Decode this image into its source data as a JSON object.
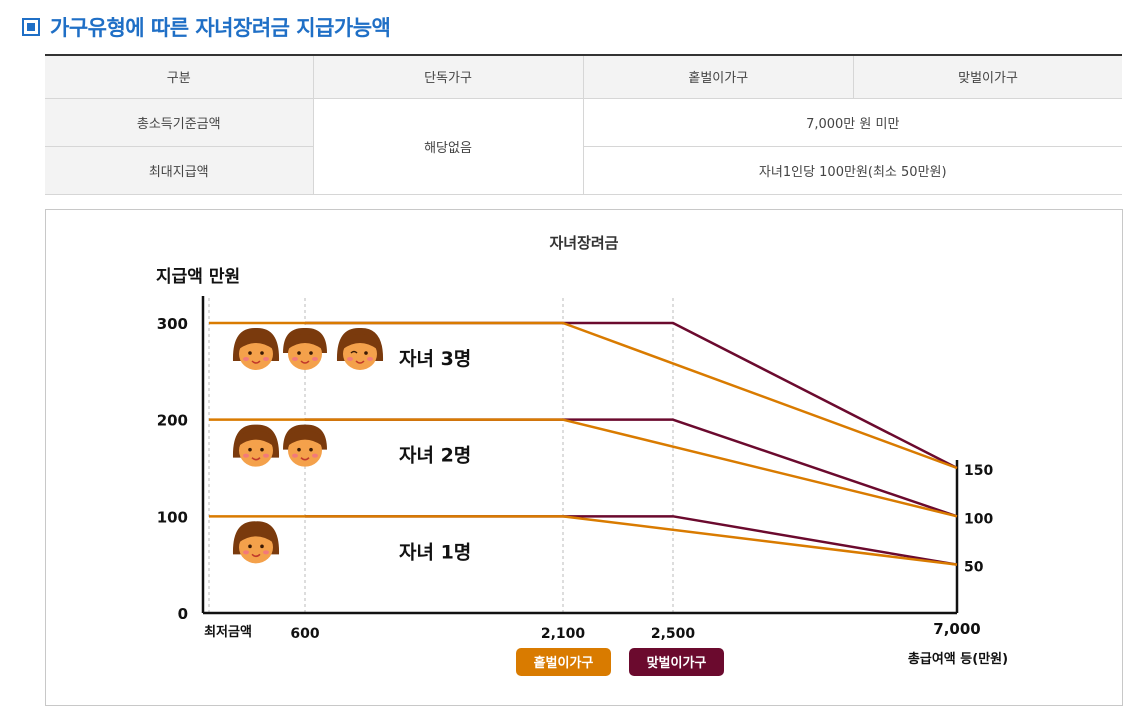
{
  "section": {
    "title": "가구유형에 따른 자녀장려금 지급가능액"
  },
  "table": {
    "headers": [
      "구분",
      "단독가구",
      "홑벌이가구",
      "맞벌이가구"
    ],
    "rows": [
      {
        "label": "총소득기준금액",
        "single": "해당없음",
        "combined": "7,000만 원 미만"
      },
      {
        "label": "최대지급액",
        "combined": "자녀1인당 100만원(최소 50만원)"
      }
    ]
  },
  "chart_data": {
    "type": "line",
    "title": "자녀장려금",
    "ylabel": "지급액 만원",
    "xlabel": "총급여액 등(만원)",
    "x_ticks": [
      "최저금액",
      "600",
      "2,100",
      "2,500",
      "7,000"
    ],
    "y_ticks": [
      "0",
      "100",
      "200",
      "300"
    ],
    "right_labels": [
      "150",
      "100",
      "50"
    ],
    "colors": {
      "single_earner": "#d97b00",
      "dual_earner": "#6b0a2e"
    },
    "legend": [
      "홑벌이가구",
      "맞벌이가구"
    ],
    "groups": [
      {
        "label": "자녀 3명",
        "children": 3,
        "series": [
          {
            "name": "홑벌이가구",
            "points": [
              [
                0,
                300
              ],
              [
                2100,
                300
              ],
              [
                7000,
                150
              ]
            ]
          },
          {
            "name": "맞벌이가구",
            "points": [
              [
                600,
                300
              ],
              [
                2500,
                300
              ],
              [
                7000,
                150
              ]
            ]
          }
        ]
      },
      {
        "label": "자녀 2명",
        "children": 2,
        "series": [
          {
            "name": "홑벌이가구",
            "points": [
              [
                0,
                200
              ],
              [
                2100,
                200
              ],
              [
                7000,
                100
              ]
            ]
          },
          {
            "name": "맞벌이가구",
            "points": [
              [
                600,
                200
              ],
              [
                2500,
                200
              ],
              [
                7000,
                100
              ]
            ]
          }
        ]
      },
      {
        "label": "자녀 1명",
        "children": 1,
        "series": [
          {
            "name": "홑벌이가구",
            "points": [
              [
                0,
                100
              ],
              [
                2100,
                100
              ],
              [
                7000,
                50
              ]
            ]
          },
          {
            "name": "맞벌이가구",
            "points": [
              [
                600,
                100
              ],
              [
                2500,
                100
              ],
              [
                7000,
                50
              ]
            ]
          }
        ]
      }
    ]
  }
}
